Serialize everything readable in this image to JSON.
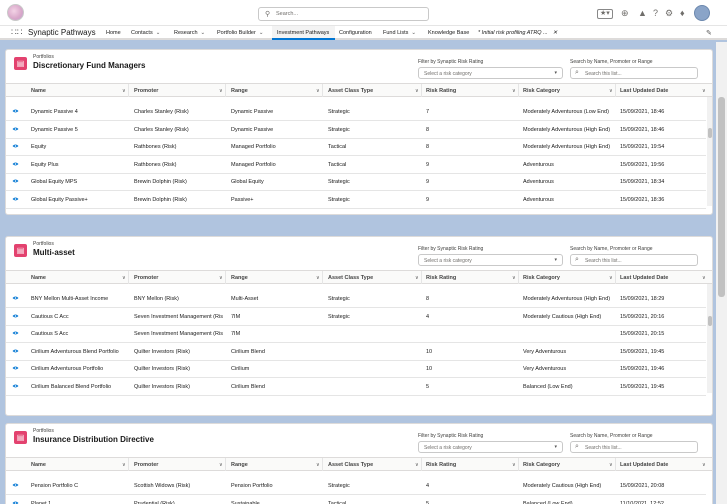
{
  "app": {
    "name": "Synaptic Pathways",
    "search_placeholder": "Search..."
  },
  "nav": {
    "items": [
      {
        "label": "Home",
        "dropdown": false
      },
      {
        "label": "Contacts",
        "dropdown": true
      },
      {
        "label": "Research",
        "dropdown": true
      },
      {
        "label": "Portfolio Builder",
        "dropdown": true
      },
      {
        "label": "Investment Pathways",
        "dropdown": false,
        "active": true
      },
      {
        "label": "Configuration",
        "dropdown": false
      },
      {
        "label": "Fund Lists",
        "dropdown": true
      },
      {
        "label": "Knowledge Base",
        "dropdown": false
      },
      {
        "label": "* Initial risk profiling ATRQ ...",
        "dropdown": false,
        "closable": true
      }
    ]
  },
  "columns": [
    "Name",
    "Promoter",
    "Range",
    "Asset Class Type",
    "Risk Rating",
    "Risk Category",
    "Last Updated Date"
  ],
  "filters": {
    "risk_label": "Filter by Synaptic Risk Rating",
    "risk_placeholder": "Select a risk category",
    "search_label": "Search by Name, Promoter or Range",
    "search_placeholder": "Search this list..."
  },
  "cards": [
    {
      "object": "Portfolios",
      "title": "Discretionary Fund Managers",
      "rows": [
        [
          "Dynamic Passive 4",
          "Charles Stanley (Risk)",
          "Dynamic Passive",
          "Strategic",
          "7",
          "Moderately Adventurous (Low End)",
          "15/09/2021, 18:46"
        ],
        [
          "Dynamic Passive 5",
          "Charles Stanley (Risk)",
          "Dynamic Passive",
          "Strategic",
          "8",
          "Moderately Adventurous (High End)",
          "15/09/2021, 18:46"
        ],
        [
          "Equity",
          "Rathbones (Risk)",
          "Managed Portfolio",
          "Tactical",
          "8",
          "Moderately Adventurous (High End)",
          "15/09/2021, 19:54"
        ],
        [
          "Equity Plus",
          "Rathbones (Risk)",
          "Managed Portfolio",
          "Tactical",
          "9",
          "Adventurous",
          "15/09/2021, 19:56"
        ],
        [
          "Global Equity MPS",
          "Brewin Dolphin (Risk)",
          "Global Equity",
          "Strategic",
          "9",
          "Adventurous",
          "15/09/2021, 18:34"
        ],
        [
          "Global Equity Passive+",
          "Brewin Dolphin (Risk)",
          "Passive+",
          "Strategic",
          "9",
          "Adventurous",
          "15/09/2021, 18:36"
        ]
      ]
    },
    {
      "object": "Portfolios",
      "title": "Multi-asset",
      "rows": [
        [
          "BNY Mellon Multi-Asset Income",
          "BNY Mellon (Risk)",
          "Multi-Asset",
          "Strategic",
          "8",
          "Moderately Adventurous (High End)",
          "15/09/2021, 18:29"
        ],
        [
          "Cautious C Acc",
          "Seven Investment Management (Risk)",
          "7IM",
          "Strategic",
          "4",
          "Moderately Cautious (High End)",
          "15/09/2021, 20:16"
        ],
        [
          "Cautious S Acc",
          "Seven Investment Management (Risk)",
          "7IM",
          "",
          "",
          "",
          "15/09/2021, 20:15"
        ],
        [
          "Cirilium Adventurous Blend Portfolio",
          "Quilter Investors (Risk)",
          "Cirilium Blend",
          "",
          "10",
          "Very Adventurous",
          "15/09/2021, 19:45"
        ],
        [
          "Cirilium Adventurous Portfolio",
          "Quilter Investors (Risk)",
          "Cirilium",
          "",
          "10",
          "Very Adventurous",
          "15/09/2021, 19:46"
        ],
        [
          "Cirilium Balanced Blend Portfolio",
          "Quilter Investors (Risk)",
          "Cirilium Blend",
          "",
          "5",
          "Balanced (Low End)",
          "15/09/2021, 19:45"
        ]
      ]
    },
    {
      "object": "Portfolios",
      "title": "Insurance Distribution Directive",
      "rows": [
        [
          "Pension Portfolio C",
          "Scottish Widows (Risk)",
          "Pension Portfolio",
          "Strategic",
          "4",
          "Moderately Cautious (High End)",
          "15/09/2021, 20:08"
        ],
        [
          "Planet 1",
          "Prudential (Risk)",
          "Sustainable",
          "Tactical",
          "5",
          "Balanced (Low End)",
          "11/10/2021, 12:52"
        ]
      ]
    }
  ],
  "colors": {
    "accent": "#0176d3",
    "card_icon": "#e3426f",
    "eye_icon": "#0176d3"
  }
}
